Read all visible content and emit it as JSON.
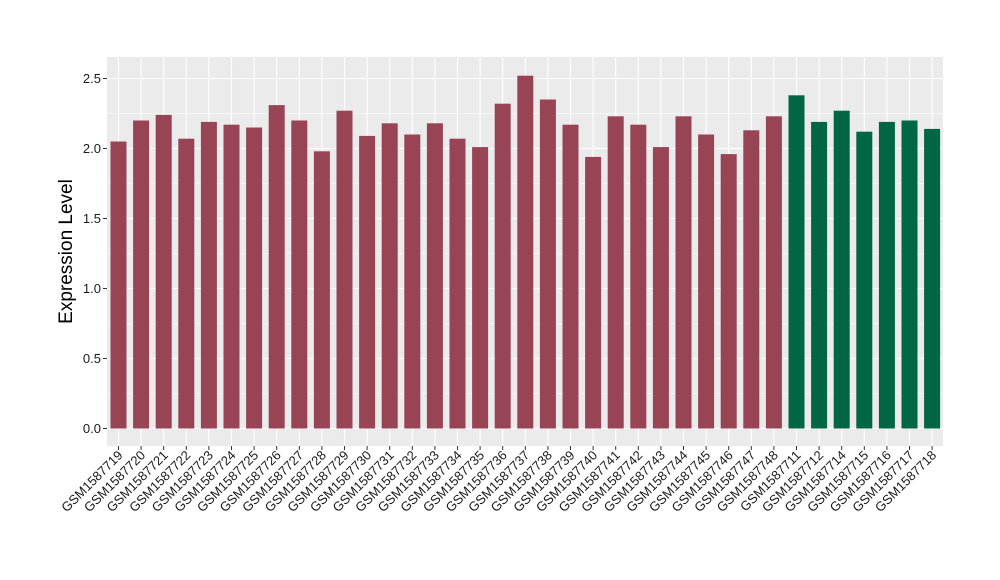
{
  "chart_data": {
    "type": "bar",
    "ylabel": "Expression Level",
    "xlabel": "",
    "ylim": [
      0,
      2.6
    ],
    "yticks": [
      0.0,
      0.5,
      1.0,
      1.5,
      2.0,
      2.5
    ],
    "ytick_labels": [
      "0.0",
      "0.5",
      "1.0",
      "1.5",
      "2.0",
      "2.5"
    ],
    "grid": true,
    "legend": "none",
    "colors": {
      "group1": "#994455",
      "group2": "#006644",
      "panel_bg": "#ebebeb",
      "grid": "#ffffff"
    },
    "categories": [
      "GSM1587719",
      "GSM1587720",
      "GSM1587721",
      "GSM1587722",
      "GSM1587723",
      "GSM1587724",
      "GSM1587725",
      "GSM1587726",
      "GSM1587727",
      "GSM1587728",
      "GSM1587729",
      "GSM1587730",
      "GSM1587731",
      "GSM1587732",
      "GSM1587733",
      "GSM1587734",
      "GSM1587735",
      "GSM1587736",
      "GSM1587737",
      "GSM1587738",
      "GSM1587739",
      "GSM1587740",
      "GSM1587741",
      "GSM1587742",
      "GSM1587743",
      "GSM1587744",
      "GSM1587745",
      "GSM1587746",
      "GSM1587747",
      "GSM1587748",
      "GSM1587711",
      "GSM1587712",
      "GSM1587714",
      "GSM1587715",
      "GSM1587716",
      "GSM1587717",
      "GSM1587718"
    ],
    "values": [
      2.05,
      2.2,
      2.24,
      2.07,
      2.19,
      2.17,
      2.15,
      2.31,
      2.2,
      1.98,
      2.27,
      2.09,
      2.18,
      2.1,
      2.18,
      2.07,
      2.01,
      2.32,
      2.52,
      2.35,
      2.17,
      1.94,
      2.23,
      2.17,
      2.01,
      2.23,
      2.1,
      1.96,
      2.13,
      2.23,
      2.38,
      2.19,
      2.27,
      2.12,
      2.19,
      2.2,
      2.14
    ],
    "groups": [
      "group1",
      "group1",
      "group1",
      "group1",
      "group1",
      "group1",
      "group1",
      "group1",
      "group1",
      "group1",
      "group1",
      "group1",
      "group1",
      "group1",
      "group1",
      "group1",
      "group1",
      "group1",
      "group1",
      "group1",
      "group1",
      "group1",
      "group1",
      "group1",
      "group1",
      "group1",
      "group1",
      "group1",
      "group1",
      "group1",
      "group2",
      "group2",
      "group2",
      "group2",
      "group2",
      "group2",
      "group2"
    ]
  }
}
